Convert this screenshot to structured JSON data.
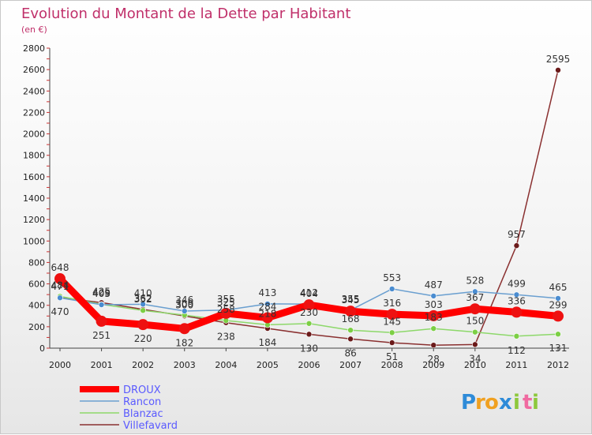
{
  "chart_data": {
    "type": "line",
    "title": "Evolution du Montant de la Dette par Habitant",
    "subtitle": "(en €)",
    "xlabel": "",
    "ylabel": "",
    "x": [
      "2000",
      "2001",
      "2002",
      "2003",
      "2004",
      "2005",
      "2006",
      "2007",
      "2008",
      "2009",
      "2010",
      "2011",
      "2012"
    ],
    "ylim": [
      0,
      2800
    ],
    "yticks": [
      0,
      200,
      400,
      600,
      800,
      1000,
      1200,
      1400,
      1600,
      1800,
      2000,
      2200,
      2400,
      2600,
      2800
    ],
    "grid": false,
    "legend": "bottom-left",
    "series": [
      {
        "name": "DROUX",
        "color": "#ff0000",
        "values": [
          648,
          251,
          220,
          182,
          325,
          284,
          404,
          345,
          316,
          303,
          367,
          336,
          299
        ]
      },
      {
        "name": "Rancon",
        "color": "#6a9fd0",
        "values": [
          470,
          405,
          410,
          346,
          355,
          413,
          412,
          355,
          553,
          487,
          528,
          499,
          465
        ]
      },
      {
        "name": "Blanzac",
        "color": "#8fdc6a",
        "values": [
          484,
          409,
          352,
          309,
          258,
          218,
          230,
          168,
          145,
          183,
          150,
          112,
          131
        ]
      },
      {
        "name": "Villefavard",
        "color": "#6b1a1a",
        "values": [
          471,
          425,
          362,
          300,
          238,
          184,
          130,
          86,
          51,
          28,
          34,
          957,
          2595
        ]
      }
    ]
  },
  "logo": {
    "letters": [
      "P",
      "r",
      "o",
      "x",
      "i",
      "t",
      "i"
    ],
    "colors": [
      "#2e8bd8",
      "#f0a020",
      "#f0a020",
      "#2e8bd8",
      "#8dc83c",
      "#f06aa0",
      "#8dc83c"
    ]
  }
}
